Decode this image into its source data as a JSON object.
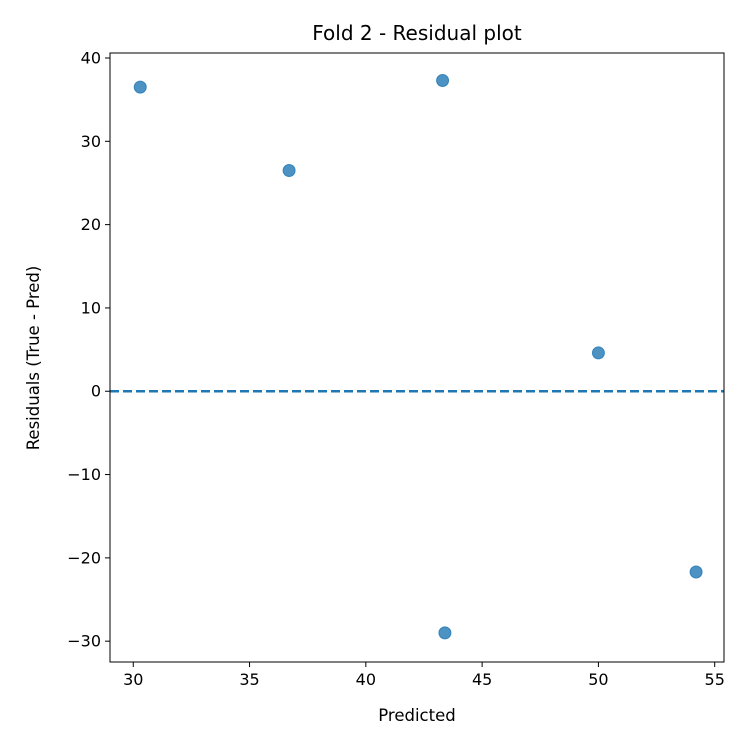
{
  "chart_data": {
    "type": "scatter",
    "title": "Fold 2 - Residual plot",
    "xlabel": "Predicted",
    "ylabel": "Residuals (True - Pred)",
    "xlim": [
      29.0,
      55.4
    ],
    "ylim": [
      -32.5,
      40.6
    ],
    "xticks": [
      30,
      35,
      40,
      45,
      50,
      55
    ],
    "yticks": [
      -30,
      -20,
      -10,
      0,
      10,
      20,
      30,
      40
    ],
    "xtick_labels": [
      "30",
      "35",
      "40",
      "45",
      "50",
      "55"
    ],
    "ytick_labels": [
      "−30",
      "−20",
      "−10",
      "0",
      "10",
      "20",
      "30",
      "40"
    ],
    "grid": false,
    "points": [
      {
        "x": 30.3,
        "y": 36.5
      },
      {
        "x": 36.7,
        "y": 26.5
      },
      {
        "x": 43.3,
        "y": 37.3
      },
      {
        "x": 43.4,
        "y": -29.0
      },
      {
        "x": 50.0,
        "y": 4.6
      },
      {
        "x": 54.2,
        "y": -21.7
      }
    ],
    "reference_line": {
      "y": 0,
      "style": "dashed"
    },
    "colors": {
      "points": "#1f77b4",
      "reference_line": "#1f77b4",
      "axes": "#000000"
    }
  }
}
